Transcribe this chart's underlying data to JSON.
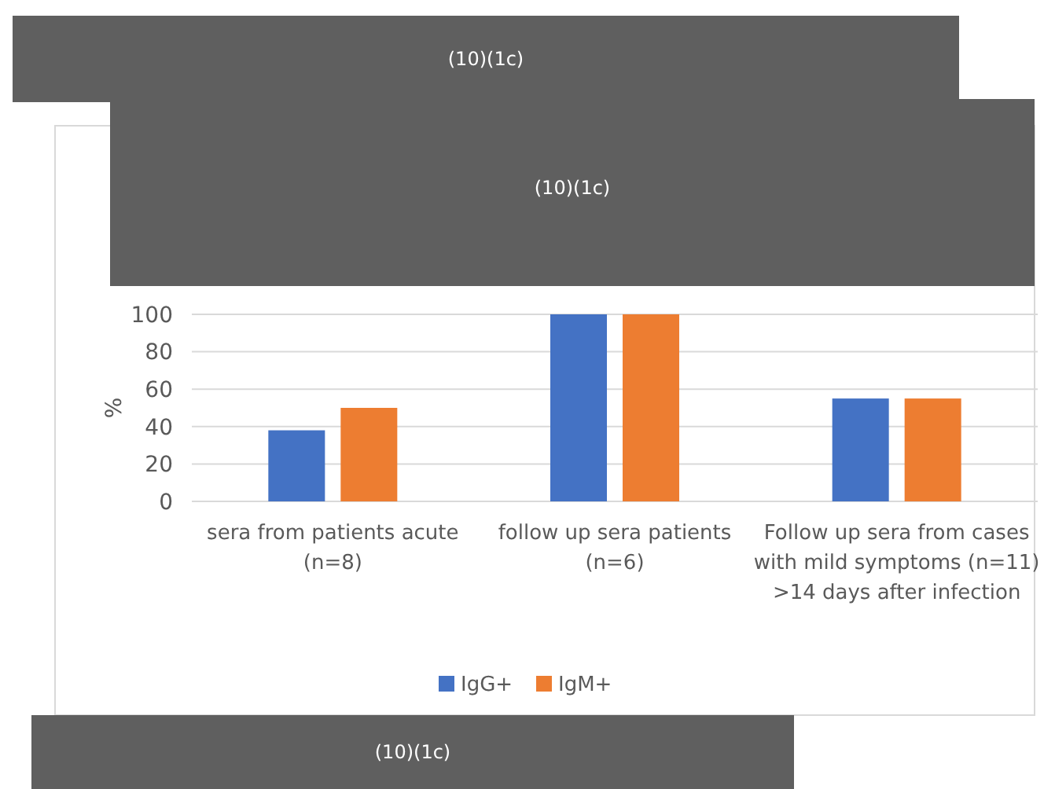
{
  "chart_data": {
    "type": "bar",
    "ylabel": "%",
    "categories": [
      "sera from patients acute (n=8)",
      "follow up sera patients (n=6)",
      "Follow up sera from cases with mild symptoms (n=11) >14 days after infection"
    ],
    "series": [
      {
        "name": "IgG+",
        "color": "#4472c4",
        "values": [
          38,
          100,
          55
        ]
      },
      {
        "name": "IgM+",
        "color": "#ed7d31",
        "values": [
          50,
          100,
          55
        ]
      }
    ],
    "ylim": [
      0,
      100
    ],
    "yticks": [
      0,
      20,
      40,
      60,
      80,
      100
    ],
    "grid": "y",
    "legend": "bottom",
    "annotations": [
      "(10)(1c)",
      "(10)(1c)",
      "(10)(1c)"
    ]
  }
}
